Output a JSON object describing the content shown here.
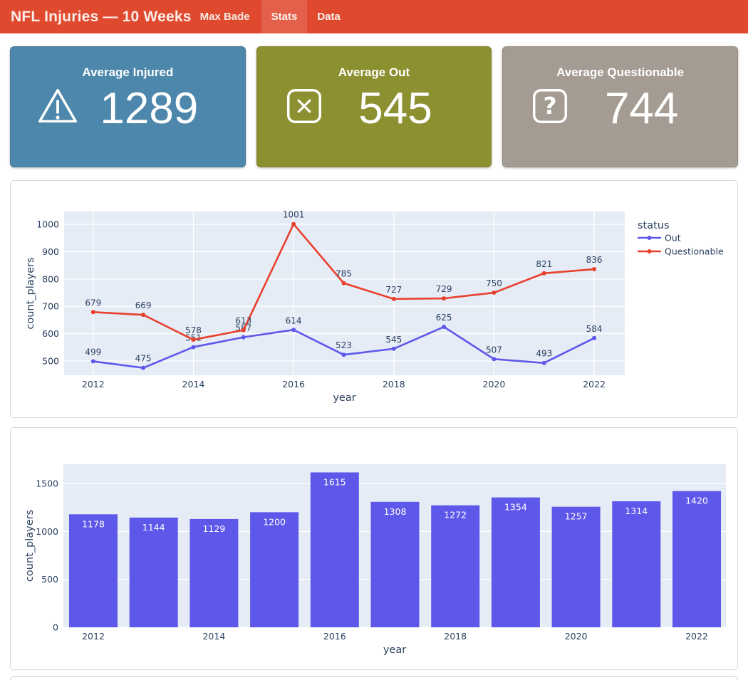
{
  "header": {
    "title": "NFL Injuries — 10 Weeks",
    "author": "Max Bade",
    "bg": "#df4a2f",
    "tab_active_bg": "#e4604a",
    "tabs": [
      {
        "label": "Stats",
        "active": true
      },
      {
        "label": "Data",
        "active": false
      }
    ]
  },
  "cards": [
    {
      "title": "Average Injured",
      "value": "1289",
      "icon": "warning-triangle-icon",
      "bg": "#4d87ab"
    },
    {
      "title": "Average Out",
      "value": "545",
      "icon": "x-square-icon",
      "bg": "#8d9030"
    },
    {
      "title": "Average Questionable",
      "value": "744",
      "icon": "question-square-icon",
      "bg": "#a49c93"
    }
  ],
  "chart_data": [
    {
      "type": "line",
      "x": [
        2012,
        2013,
        2014,
        2015,
        2016,
        2017,
        2018,
        2019,
        2020,
        2021,
        2022
      ],
      "series": [
        {
          "name": "Out",
          "color": "#5e58ea",
          "values": [
            499,
            475,
            551,
            587,
            614,
            523,
            545,
            625,
            507,
            493,
            584
          ]
        },
        {
          "name": "Questionable",
          "color": "#e8402d",
          "values": [
            679,
            669,
            578,
            613,
            1001,
            785,
            727,
            729,
            750,
            821,
            836
          ]
        }
      ],
      "title": "",
      "xlabel": "year",
      "ylabel": "count_players",
      "legend_title": "status",
      "legend_position": "right",
      "grid": true,
      "point_labels": true,
      "plot_bg": "#e5ecf6",
      "xlim": [
        2011.42,
        2022.61
      ],
      "ylim": [
        448,
        1047
      ],
      "xticks": [
        2012,
        2014,
        2016,
        2018,
        2020,
        2022
      ],
      "yticks": [
        500,
        600,
        700,
        800,
        900,
        1000
      ]
    },
    {
      "type": "bar",
      "categories": [
        2012,
        2013,
        2014,
        2015,
        2016,
        2017,
        2018,
        2019,
        2020,
        2021,
        2022
      ],
      "values": [
        1178,
        1144,
        1129,
        1200,
        1615,
        1308,
        1272,
        1354,
        1257,
        1314,
        1420
      ],
      "bar_color": "#5e58ea",
      "title": "",
      "xlabel": "year",
      "ylabel": "count_players",
      "grid": true,
      "bar_labels": true,
      "plot_bg": "#e5ecf6",
      "ylim": [
        0,
        1700
      ],
      "xticks": [
        2012,
        2014,
        2016,
        2018,
        2020,
        2022
      ],
      "yticks": [
        0,
        500,
        1000,
        1500
      ]
    }
  ]
}
